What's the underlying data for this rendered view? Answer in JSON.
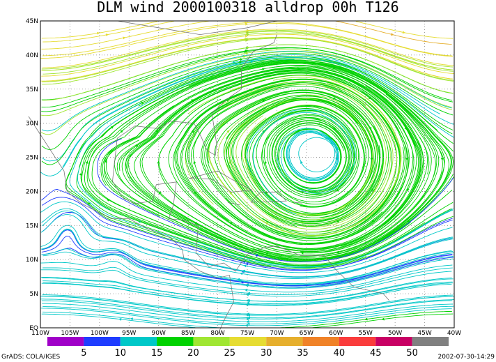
{
  "title": "DLM wind 2000100318 alldrop 00h T126",
  "lon_labels": [
    "110W",
    "105W",
    "100W",
    "95W",
    "90W",
    "85W",
    "80W",
    "75W",
    "70W",
    "65W",
    "60W",
    "55W",
    "50W",
    "45W",
    "40W"
  ],
  "lat_labels": [
    "EQ",
    "5N",
    "10N",
    "15N",
    "20N",
    "25N",
    "30N",
    "35N",
    "40N",
    "45N"
  ],
  "colorbar": {
    "labels": [
      5,
      10,
      15,
      20,
      25,
      30,
      35,
      40,
      45,
      50
    ],
    "colors": [
      "#a000c8",
      "#1e3cff",
      "#00c8c8",
      "#00d200",
      "#a0e632",
      "#e6dc32",
      "#e6af2d",
      "#f08228",
      "#fa3c3c",
      "#c80064",
      "#808080"
    ]
  },
  "footer_left": "GrADS: COLA/IGES",
  "footer_right": "2002-07-30-14:29"
}
